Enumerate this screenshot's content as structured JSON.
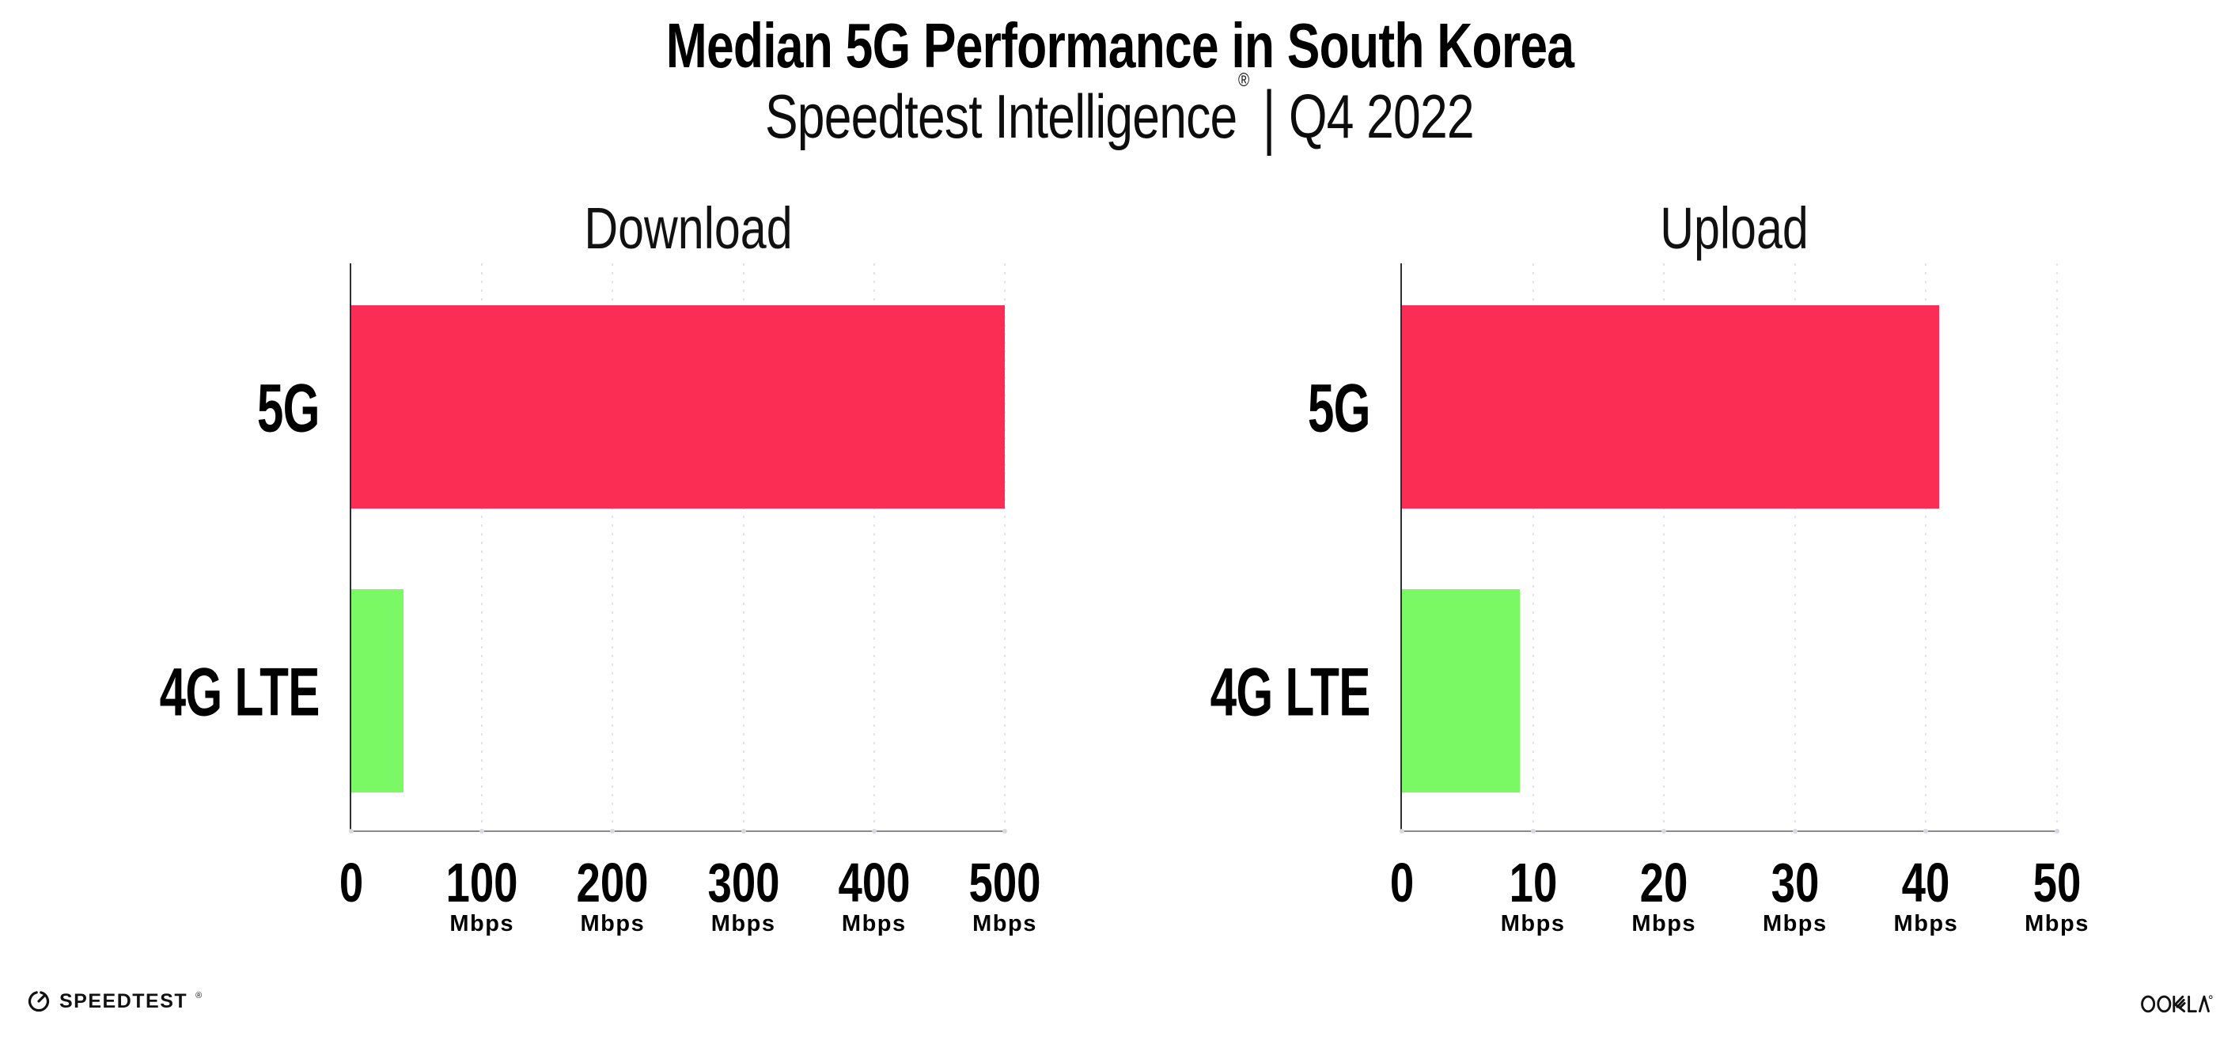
{
  "header": {
    "title": "Median 5G Performance in South Korea",
    "subtitle_brand": "Speedtest Intelligence",
    "subtitle_reg": "®",
    "subtitle_sep": "|",
    "subtitle_period": "Q4 2022"
  },
  "chart_data": [
    {
      "type": "bar",
      "orientation": "horizontal",
      "title": "Download",
      "categories": [
        "5G",
        "4G LTE"
      ],
      "values": [
        500,
        40
      ],
      "unit": "Mbps",
      "xlim": [
        0,
        500
      ],
      "xticks": [
        0,
        100,
        200,
        300,
        400,
        500
      ],
      "tick_unit_label": "Mbps",
      "grid": "vertical-dotted",
      "bar_colors": [
        "#FC2D55",
        "#7BF965"
      ]
    },
    {
      "type": "bar",
      "orientation": "horizontal",
      "title": "Upload",
      "categories": [
        "5G",
        "4G LTE"
      ],
      "values": [
        41,
        9
      ],
      "unit": "Mbps",
      "xlim": [
        0,
        50
      ],
      "xticks": [
        0,
        10,
        20,
        30,
        40,
        50
      ],
      "tick_unit_label": "Mbps",
      "grid": "vertical-dotted",
      "bar_colors": [
        "#FC2D55",
        "#7BF965"
      ]
    }
  ],
  "colors": {
    "bar_5g": "#FC2D55",
    "bar_4g_lte": "#7BF965",
    "gridline": "#E3E3ED",
    "y_axis": "#2E2E38",
    "x_axis": "#8A8A93",
    "text": "#000000"
  },
  "footer": {
    "speedtest_text": "SPEEDTEST",
    "speedtest_mark": "®",
    "ookla_text": "OOKLA",
    "ookla_reg": "®"
  }
}
